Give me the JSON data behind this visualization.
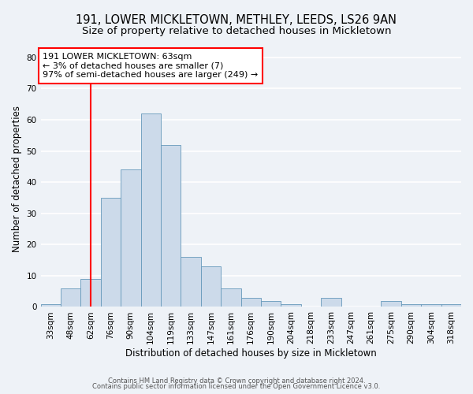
{
  "title": "191, LOWER MICKLETOWN, METHLEY, LEEDS, LS26 9AN",
  "subtitle": "Size of property relative to detached houses in Mickletown",
  "xlabel": "Distribution of detached houses by size in Mickletown",
  "ylabel": "Number of detached properties",
  "bin_labels": [
    "33sqm",
    "48sqm",
    "62sqm",
    "76sqm",
    "90sqm",
    "104sqm",
    "119sqm",
    "133sqm",
    "147sqm",
    "161sqm",
    "176sqm",
    "190sqm",
    "204sqm",
    "218sqm",
    "233sqm",
    "247sqm",
    "261sqm",
    "275sqm",
    "290sqm",
    "304sqm",
    "318sqm"
  ],
  "bar_heights": [
    1,
    6,
    9,
    35,
    44,
    62,
    52,
    16,
    13,
    6,
    3,
    2,
    1,
    0,
    3,
    0,
    0,
    2,
    1,
    1,
    1
  ],
  "bar_color": "#ccdaea",
  "bar_edge_color": "#6699bb",
  "red_line_x": 2,
  "ylim": [
    0,
    82
  ],
  "yticks": [
    0,
    10,
    20,
    30,
    40,
    50,
    60,
    70,
    80
  ],
  "annotation_line1": "191 LOWER MICKLETOWN: 63sqm",
  "annotation_line2": "← 3% of detached houses are smaller (7)",
  "annotation_line3": "97% of semi-detached houses are larger (249) →",
  "footer_line1": "Contains HM Land Registry data © Crown copyright and database right 2024.",
  "footer_line2": "Contains public sector information licensed under the Open Government Licence v3.0.",
  "bg_color": "#eef2f7",
  "grid_color": "#ffffff",
  "title_fontsize": 10.5,
  "subtitle_fontsize": 9.5,
  "xlabel_fontsize": 8.5,
  "ylabel_fontsize": 8.5,
  "tick_fontsize": 7.5,
  "footer_fontsize": 6.0,
  "annot_fontsize": 8.0
}
